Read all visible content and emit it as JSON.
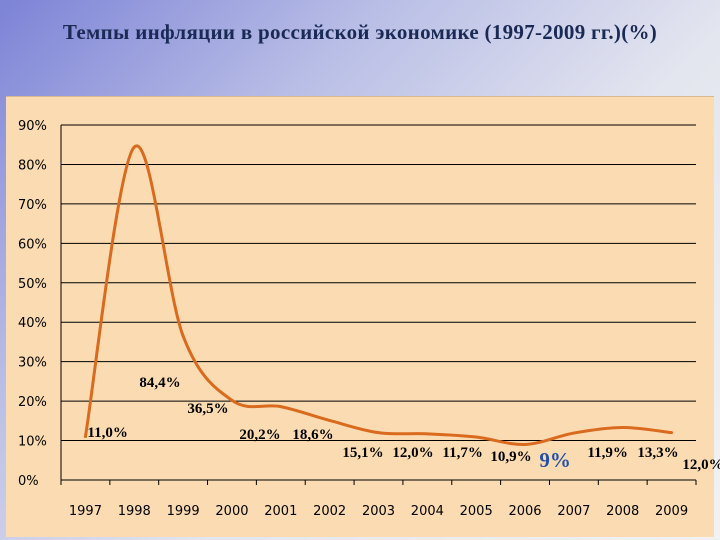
{
  "title": "Темпы инфляции в российской экономике (1997-2009 гг.)(%)",
  "chart_data": {
    "type": "line",
    "title": "Темпы инфляции в российской экономике (1997-2009 гг.)(%)",
    "xlabel": "",
    "ylabel": "",
    "x_tick_labels": [
      "1997",
      "1998",
      "1999",
      "2000",
      "2001",
      "2002",
      "2003",
      "2004",
      "2005",
      "2006",
      "2007",
      "2008",
      "2009"
    ],
    "y_tick_labels": [
      "0%",
      "10%",
      "20%",
      "30%",
      "40%",
      "50%",
      "60%",
      "70%",
      "80%",
      "90%"
    ],
    "ylim": [
      0,
      90
    ],
    "grid": true,
    "legend": "none",
    "line_color": "#d96a1e",
    "series": [
      {
        "values": [
          11.0,
          84.4,
          36.5,
          20.2,
          18.6,
          15.1,
          12.0,
          11.7,
          10.9,
          9.0,
          11.9,
          13.3,
          12.0
        ]
      }
    ],
    "data_labels": [
      "11,0%",
      "84,4%",
      "36,5%",
      "20,2%",
      "18,6%",
      "15,1%",
      "12,0%",
      "11,7%",
      "10,9%",
      "9%",
      "11,9%",
      "13,3%",
      "12,0%"
    ]
  }
}
